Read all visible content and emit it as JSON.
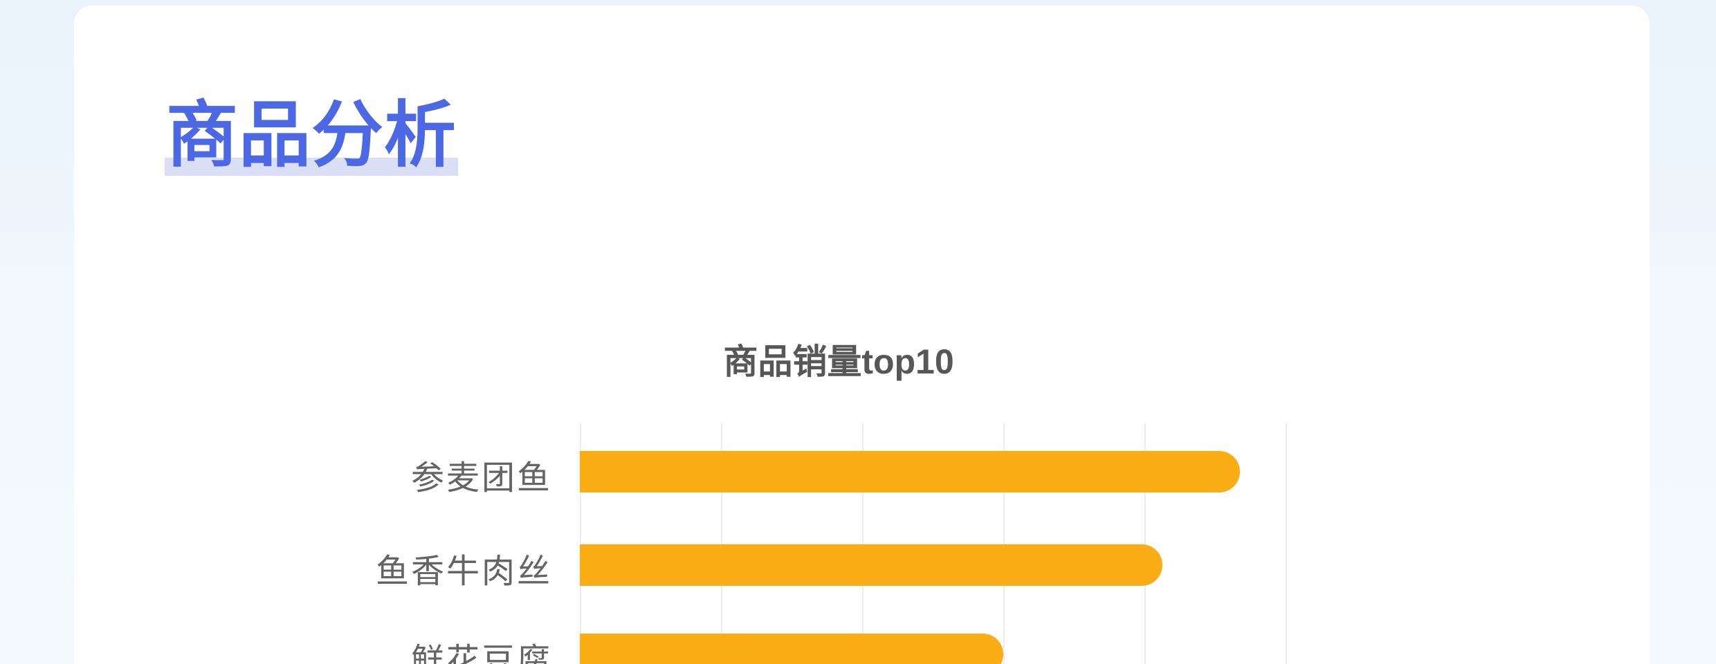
{
  "page": {
    "background_color": "#eef6fd",
    "card_color": "#ffffff"
  },
  "section": {
    "title": "商品分析",
    "title_color": "#4d68e4",
    "highlight_color": "#dadff5"
  },
  "chart_data": {
    "type": "bar",
    "orientation": "horizontal",
    "title": "商品销量top10",
    "categories": [
      "参麦团鱼",
      "鱼香牛肉丝",
      "鲜花豆腐"
    ],
    "values": [
      935,
      825,
      600
    ],
    "values_note": "estimated from unlabeled gridlines (step ≈ 200); chart is cropped at the bottom edge, remaining top10 rows not visible",
    "xlabel": "",
    "ylabel": "",
    "xlim": [
      0,
      1000
    ],
    "gridline_step": 200,
    "grid": true,
    "x_tick_labels_visible": false,
    "legend": "none",
    "title_position": "top-center",
    "bar_color": "#faad14",
    "gridline_color": "#ededed",
    "label_color": "#646464",
    "title_color": "#575757"
  }
}
